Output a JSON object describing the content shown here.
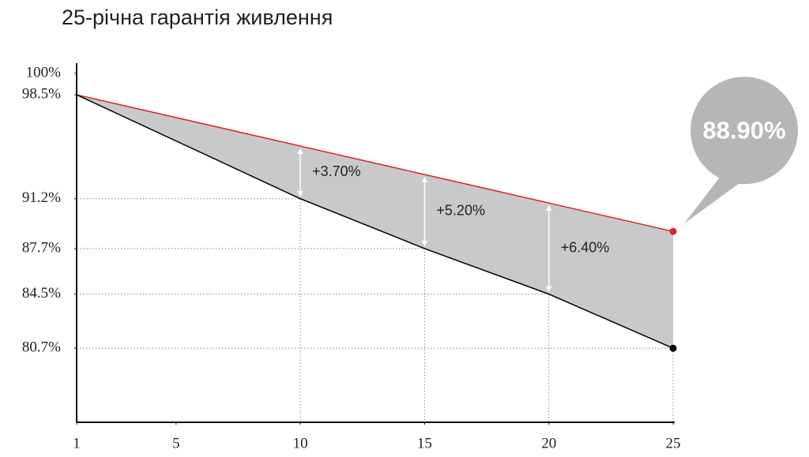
{
  "chart_data": {
    "type": "line",
    "title": "25-річна гарантія живлення",
    "x": [
      1,
      10,
      15,
      20,
      25
    ],
    "series": [
      {
        "color": "#d9262b",
        "values": [
          98.5,
          94.9,
          92.9,
          90.9,
          88.9
        ],
        "value_labels": [
          null,
          null,
          null,
          null,
          "88.90%"
        ]
      },
      {
        "color": "#000000",
        "values": [
          98.5,
          91.2,
          87.7,
          84.5,
          80.7
        ]
      }
    ],
    "fill_color": "#c8c9cb",
    "annotations": [
      {
        "x": 10,
        "label": "+3.70%"
      },
      {
        "x": 15,
        "label": "+5.20%"
      },
      {
        "x": 20,
        "label": "+6.40%"
      }
    ],
    "xlim": [
      1,
      25
    ],
    "xticks": [
      1,
      5,
      10,
      15,
      20,
      25
    ],
    "ylim": [
      75.5,
      100
    ],
    "yticks": [
      {
        "value": 100,
        "label": "100%"
      },
      {
        "value": 98.5,
        "label": "98.5%"
      },
      {
        "value": 91.2,
        "label": "91.2%"
      },
      {
        "value": 87.7,
        "label": "87.7%"
      },
      {
        "value": 84.5,
        "label": "84.5%"
      },
      {
        "value": 80.7,
        "label": "80.7%"
      }
    ]
  }
}
